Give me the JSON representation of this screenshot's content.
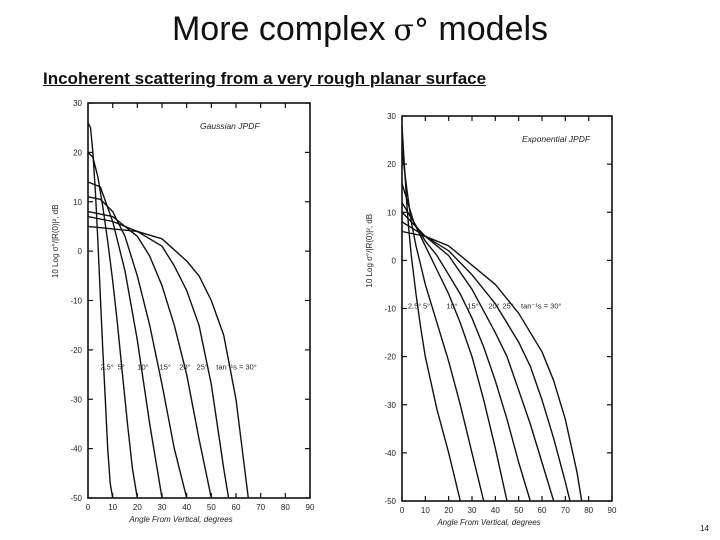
{
  "slide": {
    "title_text": "More complex",
    "title_symbol": "σ°",
    "title_tail": "models",
    "subtitle": "Incoherent scattering from a very rough planar surface",
    "page_number": "14"
  },
  "chart_data": [
    {
      "type": "line",
      "title": "Gaussian JPDF",
      "xlabel": "Angle From Vertical, degrees",
      "ylabel": "10 Log σ°/|R(0)|², dB",
      "xlim": [
        0,
        90
      ],
      "ylim": [
        -50,
        30
      ],
      "xticks": [
        0,
        10,
        20,
        30,
        40,
        50,
        60,
        70,
        80,
        90
      ],
      "yticks": [
        -50,
        -40,
        -30,
        -20,
        -10,
        0,
        10,
        20,
        30
      ],
      "curve_labels": [
        "2.5°",
        "5°",
        "10°",
        "15°",
        "20°",
        "25°",
        "tan⁻¹s = 30°"
      ],
      "series": [
        {
          "name": "2.5°",
          "x": [
            0,
            1,
            2,
            3,
            4,
            5,
            6,
            7,
            8,
            9,
            10
          ],
          "y": [
            26,
            25,
            20,
            12,
            2,
            -9,
            -20,
            -30,
            -40,
            -47,
            -50
          ]
        },
        {
          "name": "5°",
          "x": [
            0,
            2,
            4,
            6,
            8,
            10,
            12,
            14,
            16,
            18,
            20
          ],
          "y": [
            20,
            19,
            15,
            9,
            2,
            -6,
            -15,
            -25,
            -35,
            -44,
            -50
          ]
        },
        {
          "name": "10°",
          "x": [
            0,
            5,
            10,
            15,
            20,
            25,
            30
          ],
          "y": [
            14,
            13,
            6,
            -4,
            -18,
            -35,
            -50
          ]
        },
        {
          "name": "15°",
          "x": [
            0,
            5,
            10,
            15,
            20,
            25,
            30,
            35,
            40
          ],
          "y": [
            11,
            10.5,
            8,
            3,
            -5,
            -15,
            -27,
            -40,
            -50
          ]
        },
        {
          "name": "20°",
          "x": [
            0,
            10,
            20,
            25,
            30,
            35,
            40,
            45,
            50
          ],
          "y": [
            8,
            7,
            3,
            -1,
            -7,
            -15,
            -25,
            -38,
            -50
          ]
        },
        {
          "name": "25°",
          "x": [
            0,
            10,
            20,
            30,
            35,
            40,
            45,
            50,
            55,
            57
          ],
          "y": [
            7,
            6,
            4,
            1,
            -3,
            -8,
            -15,
            -27,
            -44,
            -50
          ]
        },
        {
          "name": "tan⁻¹s = 30°",
          "x": [
            0,
            10,
            20,
            30,
            40,
            45,
            50,
            55,
            60,
            62,
            65
          ],
          "y": [
            5,
            4.5,
            4,
            2.5,
            -2,
            -5,
            -10,
            -17,
            -30,
            -38,
            -50
          ]
        }
      ],
      "grid": false,
      "legend": "none"
    },
    {
      "type": "line",
      "title": "Exponential JPDF",
      "xlabel": "Angle From Vertical, degrees",
      "ylabel": "10 Log σ°/|R(0)|², dB",
      "xlim": [
        0,
        90
      ],
      "ylim": [
        -50,
        30
      ],
      "xticks": [
        0,
        10,
        20,
        30,
        40,
        50,
        60,
        70,
        80,
        90
      ],
      "yticks": [
        -50,
        -40,
        -30,
        -20,
        -10,
        0,
        10,
        20,
        30
      ],
      "curve_labels": [
        "2.5°",
        "5°",
        "10°",
        "15°",
        "20°",
        "25°",
        "tan⁻¹s = 30°"
      ],
      "series": [
        {
          "name": "2.5°",
          "x": [
            0,
            1,
            2,
            3,
            4,
            6,
            8,
            10,
            15,
            20,
            25
          ],
          "y": [
            28,
            20,
            12,
            6,
            1,
            -7,
            -14,
            -20,
            -31,
            -40,
            -50
          ]
        },
        {
          "name": "5°",
          "x": [
            0,
            2,
            4,
            6,
            8,
            10,
            15,
            20,
            25,
            30,
            35
          ],
          "y": [
            23,
            15,
            8,
            3,
            -1,
            -5,
            -13,
            -21,
            -30,
            -40,
            -50
          ]
        },
        {
          "name": "10°",
          "x": [
            0,
            5,
            10,
            15,
            20,
            25,
            30,
            35,
            40,
            45
          ],
          "y": [
            16,
            8,
            3,
            -2,
            -7,
            -13,
            -20,
            -29,
            -39,
            -50
          ]
        },
        {
          "name": "15°",
          "x": [
            0,
            5,
            10,
            15,
            20,
            25,
            30,
            35,
            40,
            45,
            50,
            55
          ],
          "y": [
            12,
            8,
            4,
            1,
            -3,
            -7,
            -12,
            -18,
            -25,
            -33,
            -42,
            -50
          ]
        },
        {
          "name": "20°",
          "x": [
            0,
            10,
            20,
            30,
            40,
            45,
            50,
            55,
            60,
            65
          ],
          "y": [
            10,
            5,
            1,
            -6,
            -15,
            -20,
            -27,
            -34,
            -42,
            -50
          ]
        },
        {
          "name": "25°",
          "x": [
            0,
            10,
            20,
            30,
            40,
            50,
            55,
            60,
            65,
            70,
            72
          ],
          "y": [
            8,
            5,
            2,
            -3,
            -9,
            -17,
            -22,
            -29,
            -37,
            -46,
            -50
          ]
        },
        {
          "name": "tan⁻¹s = 30°",
          "x": [
            0,
            10,
            20,
            30,
            40,
            50,
            60,
            65,
            70,
            75,
            77
          ],
          "y": [
            6,
            5,
            3,
            -1,
            -5,
            -11,
            -19,
            -25,
            -33,
            -44,
            -50
          ]
        }
      ],
      "grid": false,
      "legend": "none"
    }
  ]
}
